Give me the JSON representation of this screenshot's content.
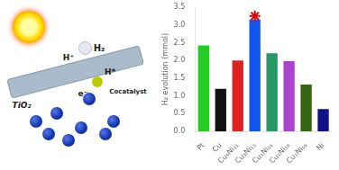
{
  "chart_data": {
    "type": "bar",
    "categories": [
      "Pt",
      "Cu",
      "Cu₉Ni₁₁",
      "Cu₃Ni₁₃",
      "Cu₁Ni₁₆",
      "Cu₁Ni₁₈",
      "Cu₁Ni₁₉",
      "Ni"
    ],
    "series": [
      {
        "type": "bar",
        "colors": [
          "#22cc22",
          "#111111",
          "#dd2222",
          "#1155ee",
          "#229966",
          "#aa44cc",
          "#336611",
          "#111188"
        ],
        "values": [
          2.42,
          1.2,
          2.0,
          3.15,
          2.2,
          1.98,
          1.32,
          0.63
        ]
      },
      {
        "type": "scatter",
        "marker": "star",
        "color": "#dd0000",
        "values": [
          null,
          null,
          null,
          3.25,
          null,
          null,
          null,
          null
        ]
      }
    ],
    "ylabel": "H₂ evolution (mmol)",
    "ylim": [
      0,
      3.5
    ],
    "yticks": [
      {
        "value": 0,
        "label": "0.0"
      },
      {
        "value": 0.5,
        "label": "0.5"
      },
      {
        "value": 1,
        "label": "1.0"
      },
      {
        "value": 1.5,
        "label": "1.5"
      },
      {
        "value": 2,
        "label": "2.0"
      },
      {
        "value": 2.5,
        "label": "2.5"
      },
      {
        "value": 3,
        "label": "3.0"
      },
      {
        "value": 3.5,
        "label": "3.5"
      }
    ],
    "grid": false,
    "annotations": [
      "TiO₂",
      "Cocatalyst",
      "H₂",
      "H*",
      "H⁺",
      "e⁻"
    ]
  }
}
